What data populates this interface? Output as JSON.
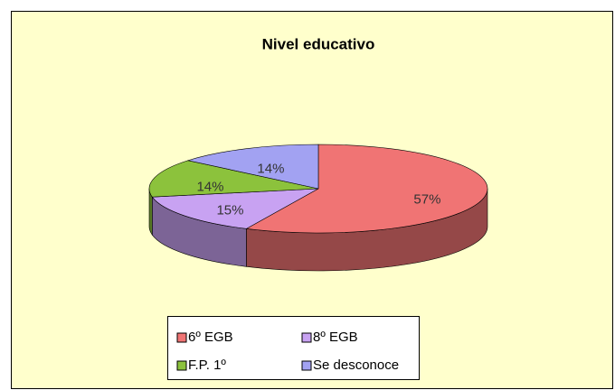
{
  "chart_data": {
    "type": "pie3d",
    "title": "Nivel educativo",
    "categories": [
      "6º EGB",
      "8º EGB",
      "F.P. 1º",
      "Se desconoce"
    ],
    "values": [
      57,
      15,
      14,
      14
    ],
    "value_labels": [
      "57%",
      "15%",
      "14%",
      "14%"
    ],
    "colors": [
      "#f07474",
      "#c8a2f2",
      "#8cc23c",
      "#a2a2f2"
    ],
    "legend": "bottom"
  }
}
